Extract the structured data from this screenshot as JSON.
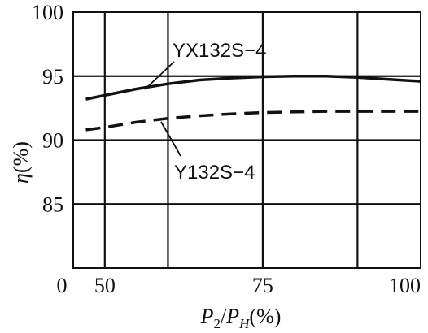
{
  "chart_data": {
    "type": "line",
    "xlim": [
      45,
      100
    ],
    "ylim": [
      80,
      100
    ],
    "xticks": [
      {
        "value": 50,
        "label": "50"
      },
      {
        "value": 75,
        "label": "75"
      },
      {
        "value": 100,
        "label": "100"
      }
    ],
    "xtick_zero_label": "0",
    "yticks": [
      {
        "value": 85,
        "label": "85"
      },
      {
        "value": 90,
        "label": "90"
      },
      {
        "value": 95,
        "label": "95"
      },
      {
        "value": 100,
        "label": "100"
      }
    ],
    "vertical_gridlines": [
      50,
      60,
      75,
      90
    ],
    "grid": true,
    "ylabel": {
      "symbol": "η",
      "unit": "(%)"
    },
    "xlabel": {
      "p": "P",
      "sub2": "2",
      "slash": "/",
      "p2": "P",
      "subH": "H",
      "unit": "(%)"
    },
    "series": [
      {
        "name": "YX132S−4",
        "style": "solid",
        "x": [
          47,
          50,
          55,
          60,
          65,
          70,
          75,
          80,
          85,
          90,
          95,
          100
        ],
        "y": [
          93.2,
          93.5,
          94.0,
          94.4,
          94.7,
          94.85,
          94.95,
          95.0,
          95.0,
          94.9,
          94.75,
          94.6
        ]
      },
      {
        "name": "Y132S−4",
        "style": "dashed",
        "x": [
          47,
          50,
          55,
          60,
          65,
          70,
          75,
          80,
          85,
          90,
          95,
          100
        ],
        "y": [
          90.8,
          91.0,
          91.4,
          91.7,
          91.9,
          92.05,
          92.15,
          92.2,
          92.25,
          92.25,
          92.25,
          92.25
        ]
      }
    ]
  }
}
